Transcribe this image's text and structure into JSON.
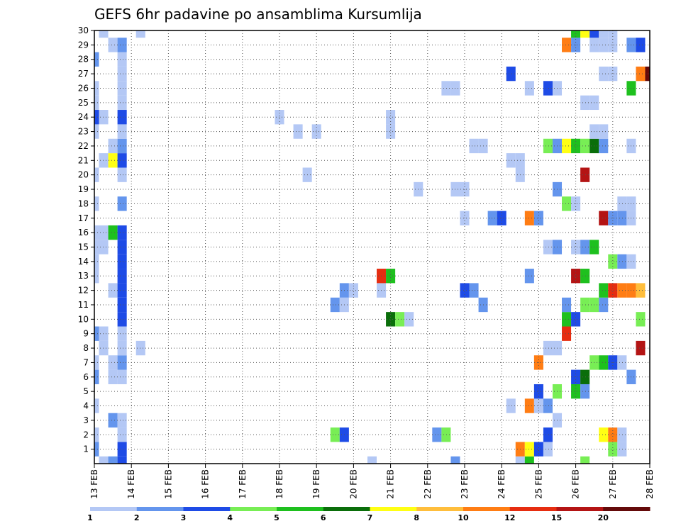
{
  "chart_data": {
    "type": "heatmap",
    "title": "GEFS 6hr padavine po ansamblima Kursumlija",
    "xlabel": "",
    "ylabel": "",
    "x_tick_labels": [
      "13 FEB",
      "14 FEB",
      "15 FEB",
      "16 FEB",
      "17 FEB",
      "18 FEB",
      "19 FEB",
      "20 FEB",
      "21 FEB",
      "22 FEB",
      "23 FEB",
      "24 FEB",
      "25 FEB",
      "26 FEB",
      "27 FEB",
      "28 FEB"
    ],
    "y_tick_labels": [
      "1",
      "2",
      "3",
      "4",
      "5",
      "6",
      "7",
      "8",
      "9",
      "10",
      "11",
      "12",
      "13",
      "14",
      "15",
      "16",
      "17",
      "18",
      "19",
      "20",
      "21",
      "22",
      "23",
      "24",
      "25",
      "26",
      "27",
      "28",
      "29",
      "30"
    ],
    "x_range_days": [
      0,
      15
    ],
    "y_range": [
      0,
      30
    ],
    "step_days": 0.25,
    "grid": true,
    "legend_labels": [
      "1",
      "2",
      "3",
      "4",
      "5",
      "6",
      "7",
      "8",
      "10",
      "12",
      "15",
      "20"
    ],
    "legend_colors": [
      "#b4c8f5",
      "#6495ed",
      "#1e4be6",
      "#78ee55",
      "#1ec01e",
      "#0a6e0a",
      "#ffff14",
      "#ffbe3c",
      "#ff7d14",
      "#e62d10",
      "#b41414",
      "#640a0a"
    ],
    "cells": [
      {
        "day": 0.25,
        "member": 0,
        "value": 1.5
      },
      {
        "day": 0.5,
        "member": 0,
        "value": 2.5
      },
      {
        "day": 0.75,
        "member": 0,
        "value": 3.5
      },
      {
        "day": 7.5,
        "member": 0,
        "value": 1.5
      },
      {
        "day": 9.75,
        "member": 0,
        "value": 2.5
      },
      {
        "day": 11.5,
        "member": 0,
        "value": 1.5
      },
      {
        "day": 11.75,
        "member": 0,
        "value": 5.5
      },
      {
        "day": 13.25,
        "member": 0,
        "value": 4.5
      },
      {
        "day": 0,
        "member": 1,
        "value": 2.5
      },
      {
        "day": 0.75,
        "member": 1,
        "value": 3.5
      },
      {
        "day": 11.5,
        "member": 1,
        "value": 11
      },
      {
        "day": 11.75,
        "member": 1,
        "value": 7.5
      },
      {
        "day": 12,
        "member": 1,
        "value": 3.5
      },
      {
        "day": 12.25,
        "member": 1,
        "value": 1.5
      },
      {
        "day": 14,
        "member": 1,
        "value": 4.5
      },
      {
        "day": 14.25,
        "member": 1,
        "value": 1.5
      },
      {
        "day": 0,
        "member": 2,
        "value": 1.5
      },
      {
        "day": 0.75,
        "member": 2,
        "value": 1.5
      },
      {
        "day": 6.5,
        "member": 2,
        "value": 4.5
      },
      {
        "day": 6.75,
        "member": 2,
        "value": 3.5
      },
      {
        "day": 9.25,
        "member": 2,
        "value": 2.5
      },
      {
        "day": 9.5,
        "member": 2,
        "value": 4.5
      },
      {
        "day": 12.25,
        "member": 2,
        "value": 3.5
      },
      {
        "day": 13.75,
        "member": 2,
        "value": 7.5
      },
      {
        "day": 14,
        "member": 2,
        "value": 11
      },
      {
        "day": 14.25,
        "member": 2,
        "value": 1.5
      },
      {
        "day": 0.5,
        "member": 3,
        "value": 2.5
      },
      {
        "day": 0.75,
        "member": 3,
        "value": 1.5
      },
      {
        "day": 12.5,
        "member": 3,
        "value": 1.5
      },
      {
        "day": 0,
        "member": 4,
        "value": 1.5
      },
      {
        "day": 11.25,
        "member": 4,
        "value": 1.5
      },
      {
        "day": 11.75,
        "member": 4,
        "value": 11
      },
      {
        "day": 12,
        "member": 4,
        "value": 1.5
      },
      {
        "day": 12.25,
        "member": 4,
        "value": 2.5
      },
      {
        "day": 12,
        "member": 5,
        "value": 3.5
      },
      {
        "day": 12.5,
        "member": 5,
        "value": 4.5
      },
      {
        "day": 13,
        "member": 5,
        "value": 5.5
      },
      {
        "day": 13.25,
        "member": 5,
        "value": 2.5
      },
      {
        "day": 0,
        "member": 6,
        "value": 2.5
      },
      {
        "day": 0.5,
        "member": 6,
        "value": 1.5
      },
      {
        "day": 0.75,
        "member": 6,
        "value": 1.5
      },
      {
        "day": 13,
        "member": 6,
        "value": 3.5
      },
      {
        "day": 13.25,
        "member": 6,
        "value": 6.5
      },
      {
        "day": 14.5,
        "member": 6,
        "value": 2.5
      },
      {
        "day": 0,
        "member": 7,
        "value": 1.5
      },
      {
        "day": 0.5,
        "member": 7,
        "value": 1.5
      },
      {
        "day": 0.75,
        "member": 7,
        "value": 2.5
      },
      {
        "day": 12,
        "member": 7,
        "value": 11
      },
      {
        "day": 13.5,
        "member": 7,
        "value": 4.5
      },
      {
        "day": 13.75,
        "member": 7,
        "value": 5.5
      },
      {
        "day": 14,
        "member": 7,
        "value": 3.5
      },
      {
        "day": 14.25,
        "member": 7,
        "value": 1.5
      },
      {
        "day": 0.25,
        "member": 8,
        "value": 1.5
      },
      {
        "day": 0.75,
        "member": 8,
        "value": 1.5
      },
      {
        "day": 1.25,
        "member": 8,
        "value": 1.5
      },
      {
        "day": 12.25,
        "member": 8,
        "value": 1.5
      },
      {
        "day": 12.5,
        "member": 8,
        "value": 1.5
      },
      {
        "day": 14.75,
        "member": 8,
        "value": 17
      },
      {
        "day": 0,
        "member": 9,
        "value": 2.5
      },
      {
        "day": 0.25,
        "member": 9,
        "value": 1.5
      },
      {
        "day": 0.75,
        "member": 9,
        "value": 1.5
      },
      {
        "day": 12.75,
        "member": 9,
        "value": 13
      },
      {
        "day": 0.75,
        "member": 10,
        "value": 3.5
      },
      {
        "day": 8,
        "member": 10,
        "value": 6.5
      },
      {
        "day": 8.25,
        "member": 10,
        "value": 4.5
      },
      {
        "day": 8.5,
        "member": 10,
        "value": 1.5
      },
      {
        "day": 12.75,
        "member": 10,
        "value": 5.5
      },
      {
        "day": 13,
        "member": 10,
        "value": 3.5
      },
      {
        "day": 14.75,
        "member": 10,
        "value": 4.5
      },
      {
        "day": 0.75,
        "member": 11,
        "value": 3.5
      },
      {
        "day": 6.5,
        "member": 11,
        "value": 2.5
      },
      {
        "day": 6.75,
        "member": 11,
        "value": 1.5
      },
      {
        "day": 10.5,
        "member": 11,
        "value": 2.5
      },
      {
        "day": 12.75,
        "member": 11,
        "value": 2.5
      },
      {
        "day": 13.25,
        "member": 11,
        "value": 4.5
      },
      {
        "day": 13.5,
        "member": 11,
        "value": 4.5
      },
      {
        "day": 13.75,
        "member": 11,
        "value": 2.5
      },
      {
        "day": 0.5,
        "member": 12,
        "value": 1.5
      },
      {
        "day": 0.75,
        "member": 12,
        "value": 3.5
      },
      {
        "day": 6.75,
        "member": 12,
        "value": 2.5
      },
      {
        "day": 7,
        "member": 12,
        "value": 1.5
      },
      {
        "day": 7.75,
        "member": 12,
        "value": 1.5
      },
      {
        "day": 10,
        "member": 12,
        "value": 3.5
      },
      {
        "day": 10.25,
        "member": 12,
        "value": 2.5
      },
      {
        "day": 13.75,
        "member": 12,
        "value": 5.5
      },
      {
        "day": 14,
        "member": 12,
        "value": 13
      },
      {
        "day": 14.25,
        "member": 12,
        "value": 11
      },
      {
        "day": 14.5,
        "member": 12,
        "value": 11
      },
      {
        "day": 14.75,
        "member": 12,
        "value": 8
      },
      {
        "day": 0,
        "member": 13,
        "value": 1.5
      },
      {
        "day": 0.75,
        "member": 13,
        "value": 3.5
      },
      {
        "day": 7.75,
        "member": 13,
        "value": 13
      },
      {
        "day": 8,
        "member": 13,
        "value": 5.5
      },
      {
        "day": 11.75,
        "member": 13,
        "value": 2.5
      },
      {
        "day": 13,
        "member": 13,
        "value": 16
      },
      {
        "day": 13.25,
        "member": 13,
        "value": 5.5
      },
      {
        "day": 0,
        "member": 14,
        "value": 1.5
      },
      {
        "day": 0.75,
        "member": 14,
        "value": 3.5
      },
      {
        "day": 14,
        "member": 14,
        "value": 4.5
      },
      {
        "day": 14.25,
        "member": 14,
        "value": 2.5
      },
      {
        "day": 14.5,
        "member": 14,
        "value": 1.5
      },
      {
        "day": 0,
        "member": 15,
        "value": 1.5
      },
      {
        "day": 0.25,
        "member": 15,
        "value": 1.5
      },
      {
        "day": 0.75,
        "member": 15,
        "value": 3.5
      },
      {
        "day": 12.25,
        "member": 15,
        "value": 1.5
      },
      {
        "day": 12.5,
        "member": 15,
        "value": 2.5
      },
      {
        "day": 13,
        "member": 15,
        "value": 1.5
      },
      {
        "day": 13.25,
        "member": 15,
        "value": 2.5
      },
      {
        "day": 13.5,
        "member": 15,
        "value": 5.5
      },
      {
        "day": 0,
        "member": 16,
        "value": 1.5
      },
      {
        "day": 0.25,
        "member": 16,
        "value": 1.5
      },
      {
        "day": 0.5,
        "member": 16,
        "value": 5.5
      },
      {
        "day": 0.75,
        "member": 16,
        "value": 3.5
      },
      {
        "day": 10,
        "member": 17,
        "value": 1.5
      },
      {
        "day": 10.75,
        "member": 17,
        "value": 2.5
      },
      {
        "day": 11,
        "member": 17,
        "value": 3.5
      },
      {
        "day": 11.75,
        "member": 17,
        "value": 11
      },
      {
        "day": 12,
        "member": 17,
        "value": 2.5
      },
      {
        "day": 13.75,
        "member": 17,
        "value": 16
      },
      {
        "day": 14,
        "member": 17,
        "value": 2.5
      },
      {
        "day": 14.25,
        "member": 17,
        "value": 2.5
      },
      {
        "day": 14.5,
        "member": 17,
        "value": 1.5
      },
      {
        "day": 0,
        "member": 18,
        "value": 1.5
      },
      {
        "day": 0.75,
        "member": 18,
        "value": 2.5
      },
      {
        "day": 12.75,
        "member": 18,
        "value": 4.5
      },
      {
        "day": 13,
        "member": 18,
        "value": 1.5
      },
      {
        "day": 14.25,
        "member": 18,
        "value": 1.5
      },
      {
        "day": 14.5,
        "member": 18,
        "value": 1.5
      },
      {
        "day": 8.75,
        "member": 19,
        "value": 1.5
      },
      {
        "day": 9.75,
        "member": 19,
        "value": 1.5
      },
      {
        "day": 10,
        "member": 19,
        "value": 1.5
      },
      {
        "day": 12.5,
        "member": 19,
        "value": 2.5
      },
      {
        "day": 0,
        "member": 20,
        "value": 1.5
      },
      {
        "day": 0.75,
        "member": 20,
        "value": 1.5
      },
      {
        "day": 5.75,
        "member": 20,
        "value": 1.5
      },
      {
        "day": 11.5,
        "member": 20,
        "value": 1.5
      },
      {
        "day": 13.25,
        "member": 20,
        "value": 16
      },
      {
        "day": 0.25,
        "member": 21,
        "value": 1.5
      },
      {
        "day": 0.5,
        "member": 21,
        "value": 7.5
      },
      {
        "day": 0.75,
        "member": 21,
        "value": 3.5
      },
      {
        "day": 11.25,
        "member": 21,
        "value": 1.5
      },
      {
        "day": 11.5,
        "member": 21,
        "value": 1.5
      },
      {
        "day": 0.5,
        "member": 22,
        "value": 1.5
      },
      {
        "day": 0.75,
        "member": 22,
        "value": 2.5
      },
      {
        "day": 10.25,
        "member": 22,
        "value": 1.5
      },
      {
        "day": 10.5,
        "member": 22,
        "value": 1.5
      },
      {
        "day": 12.25,
        "member": 22,
        "value": 4.5
      },
      {
        "day": 12.5,
        "member": 22,
        "value": 2.5
      },
      {
        "day": 12.75,
        "member": 22,
        "value": 7.5
      },
      {
        "day": 13,
        "member": 22,
        "value": 5.5
      },
      {
        "day": 13.25,
        "member": 22,
        "value": 4.5
      },
      {
        "day": 13.5,
        "member": 22,
        "value": 6.5
      },
      {
        "day": 13.75,
        "member": 22,
        "value": 2.5
      },
      {
        "day": 14.5,
        "member": 22,
        "value": 1.5
      },
      {
        "day": 0,
        "member": 23,
        "value": 1.5
      },
      {
        "day": 0.75,
        "member": 23,
        "value": 1.5
      },
      {
        "day": 5.5,
        "member": 23,
        "value": 1.5
      },
      {
        "day": 6,
        "member": 23,
        "value": 1.5
      },
      {
        "day": 8,
        "member": 23,
        "value": 1.5
      },
      {
        "day": 13.5,
        "member": 23,
        "value": 1.5
      },
      {
        "day": 13.75,
        "member": 23,
        "value": 1.5
      },
      {
        "day": 0,
        "member": 24,
        "value": 3.5
      },
      {
        "day": 0.25,
        "member": 24,
        "value": 1.5
      },
      {
        "day": 0.75,
        "member": 24,
        "value": 3.5
      },
      {
        "day": 5,
        "member": 24,
        "value": 1.5
      },
      {
        "day": 8,
        "member": 24,
        "value": 1.5
      },
      {
        "day": 0,
        "member": 25,
        "value": 1.5
      },
      {
        "day": 0.75,
        "member": 25,
        "value": 1.5
      },
      {
        "day": 13.25,
        "member": 25,
        "value": 1.5
      },
      {
        "day": 13.5,
        "member": 25,
        "value": 1.5
      },
      {
        "day": 0,
        "member": 26,
        "value": 1.5
      },
      {
        "day": 0.75,
        "member": 26,
        "value": 1.5
      },
      {
        "day": 9.5,
        "member": 26,
        "value": 1.5
      },
      {
        "day": 9.75,
        "member": 26,
        "value": 1.5
      },
      {
        "day": 11.75,
        "member": 26,
        "value": 1.5
      },
      {
        "day": 12.25,
        "member": 26,
        "value": 3.5
      },
      {
        "day": 12.5,
        "member": 26,
        "value": 1.5
      },
      {
        "day": 14.5,
        "member": 26,
        "value": 5.5
      },
      {
        "day": 0.75,
        "member": 27,
        "value": 1.5
      },
      {
        "day": 11.25,
        "member": 27,
        "value": 3.5
      },
      {
        "day": 13.75,
        "member": 27,
        "value": 1.5
      },
      {
        "day": 14,
        "member": 27,
        "value": 1.5
      },
      {
        "day": 14.75,
        "member": 27,
        "value": 11
      },
      {
        "day": 15,
        "member": 27,
        "value": 22
      },
      {
        "day": 0,
        "member": 28,
        "value": 2.5
      },
      {
        "day": 0.75,
        "member": 28,
        "value": 1.5
      },
      {
        "day": 0.5,
        "member": 29,
        "value": 1.5
      },
      {
        "day": 0.75,
        "member": 29,
        "value": 2.5
      },
      {
        "day": 12.75,
        "member": 29,
        "value": 11
      },
      {
        "day": 13,
        "member": 29,
        "value": 2.5
      },
      {
        "day": 13.5,
        "member": 29,
        "value": 1.5
      },
      {
        "day": 13.75,
        "member": 29,
        "value": 1.5
      },
      {
        "day": 14,
        "member": 29,
        "value": 1.5
      },
      {
        "day": 14.5,
        "member": 29,
        "value": 2.5
      },
      {
        "day": 14.75,
        "member": 29,
        "value": 3.5
      },
      {
        "day": 0.25,
        "member": 30,
        "value": 1.5
      },
      {
        "day": 1.25,
        "member": 30,
        "value": 1.5
      },
      {
        "day": 13,
        "member": 30,
        "value": 5.5
      },
      {
        "day": 13.25,
        "member": 30,
        "value": 7.5
      },
      {
        "day": 13.5,
        "member": 30,
        "value": 3.5
      },
      {
        "day": 13.75,
        "member": 30,
        "value": 1.5
      },
      {
        "day": 14,
        "member": 30,
        "value": 1.5
      }
    ]
  }
}
